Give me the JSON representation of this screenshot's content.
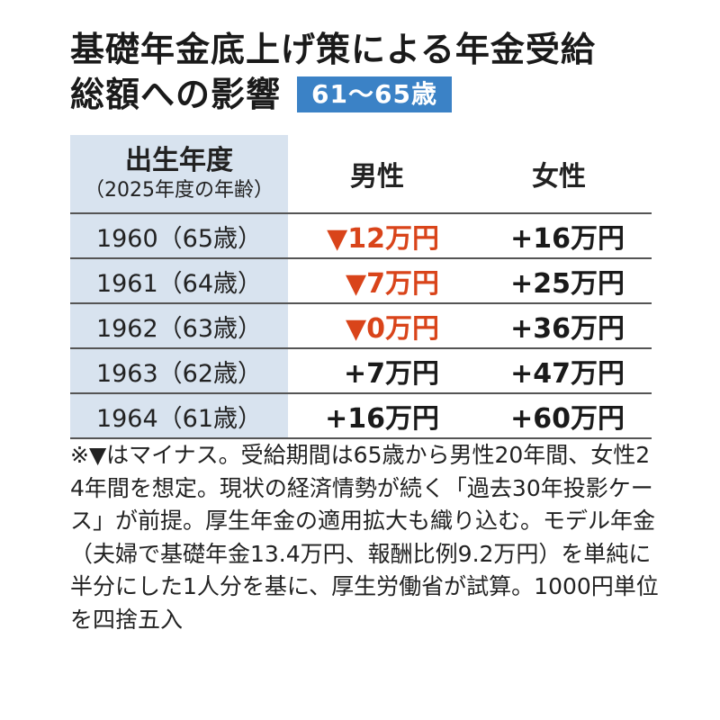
{
  "title": {
    "line1": "基礎年金底上げ策による年金受給",
    "line2": "総額への影響",
    "badge": "61〜65歳"
  },
  "chart_data": {
    "type": "table",
    "columns": {
      "birth_year_title": "出生年度",
      "birth_year_sub": "（2025年度の年齢）",
      "male": "男性",
      "female": "女性"
    },
    "rows": [
      {
        "year": "1960（65歳）",
        "male": "▼12万円",
        "male_negative": true,
        "female": "+16万円"
      },
      {
        "year": "1961（64歳）",
        "male": "▼7万円",
        "male_negative": true,
        "female": "+25万円"
      },
      {
        "year": "1962（63歳）",
        "male": "▼0万円",
        "male_negative": true,
        "female": "+36万円"
      },
      {
        "year": "1963（62歳）",
        "male": "+7万円",
        "male_negative": false,
        "female": "+47万円"
      },
      {
        "year": "1964（61歳）",
        "male": "+16万円",
        "male_negative": false,
        "female": "+60万円"
      }
    ],
    "values": {
      "male": [
        -12,
        -7,
        0,
        7,
        16
      ],
      "female": [
        16,
        25,
        36,
        47,
        60
      ]
    },
    "unit": "万円"
  },
  "note": "※▼はマイナス。受給期間は65歳から男性20年間、女性24年間を想定。現状の経済情勢が続く「過去30年投影ケース」が前提。厚生年金の適用拡大も織り込む。モデル年金（夫婦で基礎年金13.4万円、報酬比例9.2万円）を単純に半分にした1人分を基に、厚生労働省が試算。1000円単位を四捨五入",
  "colors": {
    "negative": "#d9441a",
    "badge": "#3b82c6",
    "year_column": "#d8e3ef"
  }
}
